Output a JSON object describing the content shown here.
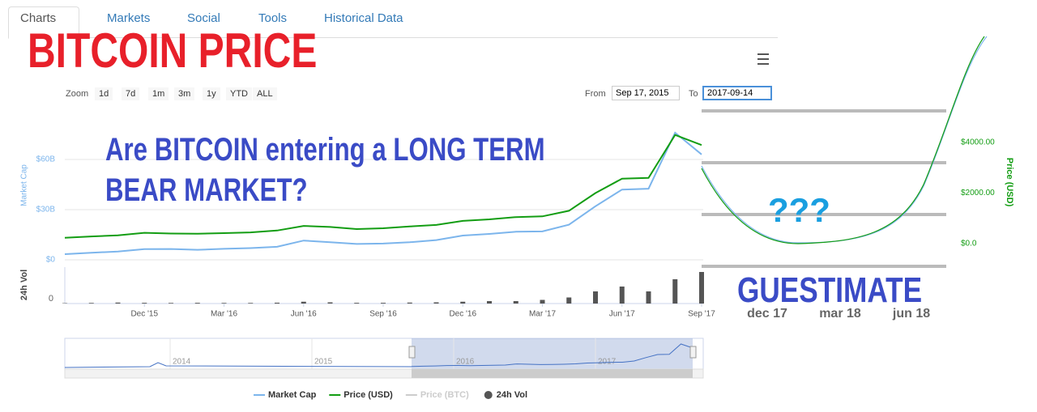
{
  "tabs": [
    "Charts",
    "Markets",
    "Social",
    "Tools",
    "Historical Data"
  ],
  "overlay_title": "BITCOIN PRICE",
  "zoom": {
    "label": "Zoom",
    "buttons": [
      "1d",
      "7d",
      "1m",
      "3m",
      "1y",
      "YTD",
      "ALL"
    ]
  },
  "range": {
    "from_label": "From",
    "from": "Sep 17, 2015",
    "to_label": "To",
    "to": "2017-09-14"
  },
  "annotations": {
    "question": "Are BITCOIN entering a LONG TERM BEAR MARKET?",
    "marks": "???",
    "guess": "GUESTIMATE",
    "guess_x_labels": [
      "dec 17",
      "mar 18",
      "jun 18"
    ]
  },
  "navigator": {
    "years": [
      "2014",
      "2015",
      "2016",
      "2017"
    ]
  },
  "chart_data": {
    "type": "line",
    "ylabel": "Market Cap",
    "y2label": "Price (USD)",
    "vol_label": "24h Vol",
    "categories": [
      null,
      null,
      null,
      "Dec '15",
      null,
      null,
      "Mar '16",
      null,
      null,
      "Jun '16",
      null,
      null,
      "Sep '16",
      null,
      null,
      "Dec '16",
      null,
      null,
      "Mar '17",
      null,
      null,
      "Jun '17",
      null,
      null,
      "Sep '17"
    ],
    "series": [
      {
        "name": "Market Cap",
        "color": "#7cb5ec",
        "values": [
          3400000000,
          4200000000,
          5000000000,
          6400000000,
          6500000000,
          6000000000,
          6600000000,
          7000000000,
          7800000000,
          11500000000,
          10500000000,
          9500000000,
          9700000000,
          10500000000,
          11800000000,
          14500000000,
          15500000000,
          16800000000,
          17000000000,
          21000000000,
          32000000000,
          42000000000,
          42500000000,
          76000000000,
          63000000000
        ]
      },
      {
        "name": "Price (USD)",
        "color": "#139d13",
        "axis": "y2",
        "values": [
          235,
          285,
          330,
          430,
          400,
          390,
          415,
          445,
          520,
          700,
          660,
          575,
          610,
          680,
          740,
          900,
          960,
          1050,
          1080,
          1300,
          2000,
          2570,
          2600,
          4300,
          3900
        ]
      },
      {
        "name": "Price (BTC)",
        "color": "#cccccc",
        "hidden": true,
        "values": [
          null,
          null,
          null,
          null,
          null,
          null,
          null,
          null,
          null,
          null,
          null,
          null,
          null,
          null,
          null,
          null,
          null,
          null,
          null,
          null,
          null,
          null,
          null,
          null,
          null
        ]
      },
      {
        "name": "24h Vol",
        "color": "#555555",
        "axis": "vol",
        "values": [
          30000000,
          50000000,
          80000000,
          60000000,
          50000000,
          60000000,
          50000000,
          50000000,
          70000000,
          150000000,
          100000000,
          60000000,
          60000000,
          80000000,
          100000000,
          150000000,
          200000000,
          200000000,
          300000000,
          500000000,
          1000000000,
          1400000000,
          1000000000,
          2000000000,
          2600000000
        ]
      }
    ],
    "ylim": [
      0,
      89000000000
    ],
    "yticks": [
      {
        "value": 0,
        "label": "$0"
      },
      {
        "value": 30000000000,
        "label": "$30B"
      },
      {
        "value": 60000000000,
        "label": "$60B"
      }
    ],
    "y2lim": [
      -640,
      5250
    ],
    "y2ticks": [
      {
        "value": 0,
        "label": "$0.0"
      },
      {
        "value": 2000,
        "label": "$2000.00"
      },
      {
        "value": 4000,
        "label": "$4000.00"
      }
    ],
    "vol_ylim": [
      0,
      3000000000
    ],
    "vol_yticks": [
      0
    ],
    "grid": true
  }
}
